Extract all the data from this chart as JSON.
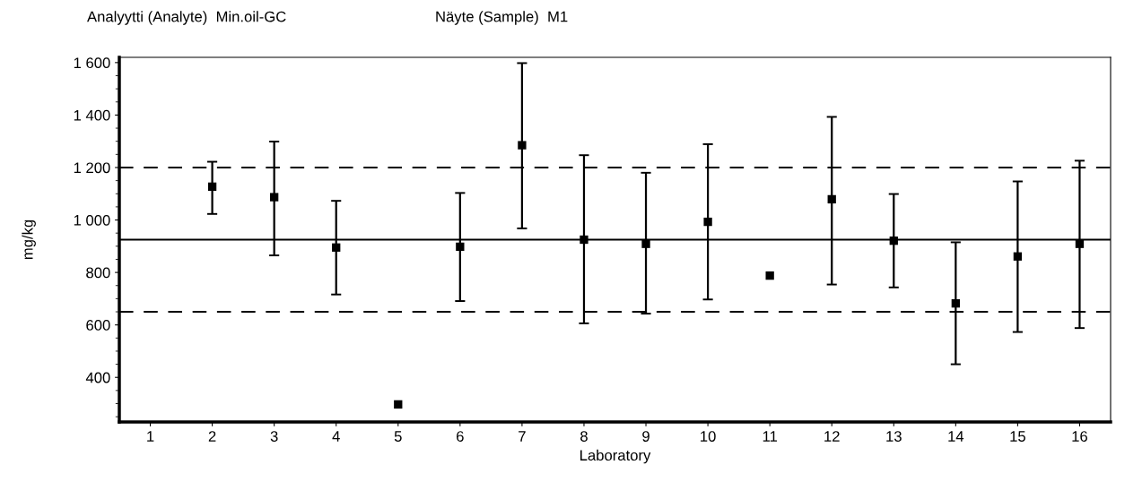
{
  "chart_data": {
    "type": "scatter",
    "title": "Analyytti (Analyte)  Min.oil-GC",
    "subtitle": "Näyte (Sample)  M1",
    "xlabel": "Laboratory",
    "ylabel": "mg/kg",
    "categories": [
      "1",
      "2",
      "3",
      "4",
      "5",
      "6",
      "7",
      "8",
      "9",
      "10",
      "11",
      "12",
      "13",
      "14",
      "15",
      "16"
    ],
    "series": [
      {
        "color": "#000000",
        "values": [
          null,
          1127,
          1087,
          895,
          297,
          898,
          1285,
          925,
          909,
          993,
          788,
          1079,
          921,
          682,
          861,
          909
        ],
        "errors": [
          null,
          [
            1023,
            1222
          ],
          [
            865,
            1299
          ],
          [
            716,
            1073
          ],
          null,
          [
            691,
            1103
          ],
          [
            968,
            1598
          ],
          [
            606,
            1247
          ],
          [
            643,
            1180
          ],
          [
            697,
            1289
          ],
          null,
          [
            754,
            1393
          ],
          [
            743,
            1099
          ],
          [
            450,
            915
          ],
          [
            573,
            1147
          ],
          [
            588,
            1226
          ]
        ]
      }
    ],
    "ylim": [
      230,
      1620
    ],
    "yticks": [
      {
        "value": 400,
        "label": "400"
      },
      {
        "value": 600,
        "label": "600"
      },
      {
        "value": 800,
        "label": "800"
      },
      {
        "value": 1000,
        "label": "1 000"
      },
      {
        "value": 1200,
        "label": "1 200"
      },
      {
        "value": 1400,
        "label": "1 400"
      },
      {
        "value": 1600,
        "label": "1 600"
      }
    ],
    "ref_lines": [
      {
        "axis": "y",
        "value": 925,
        "label": null,
        "line_style": "solid",
        "color": "#000000"
      },
      {
        "axis": "y",
        "value": 1200,
        "label": null,
        "line_style": "dashed",
        "color": "#000000"
      },
      {
        "axis": "y",
        "value": 650,
        "label": null,
        "line_style": "dashed",
        "color": "#000000"
      }
    ],
    "grid": false,
    "legend": false,
    "marker": "square"
  }
}
